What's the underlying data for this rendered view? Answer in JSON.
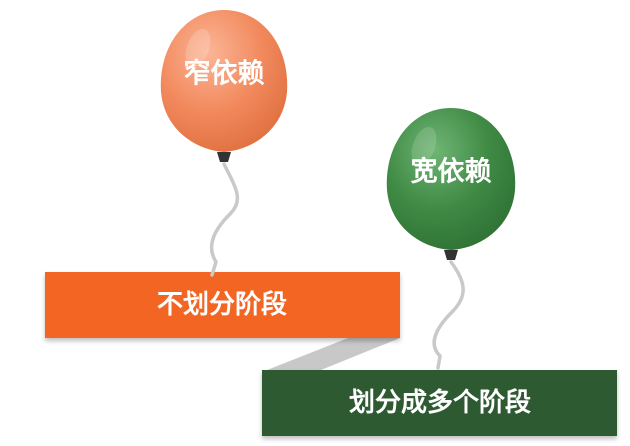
{
  "balloons": {
    "narrow": {
      "label": "窄依赖",
      "color": "#f28a5e"
    },
    "wide": {
      "label": "宽依赖",
      "color": "#3f8a45"
    }
  },
  "bars": {
    "single_stage": {
      "label": "不划分阶段",
      "color": "#f26522"
    },
    "multi_stage": {
      "label": "划分成多个阶段",
      "color": "#2e5a33"
    }
  },
  "connector_color": "#c8c8c8"
}
